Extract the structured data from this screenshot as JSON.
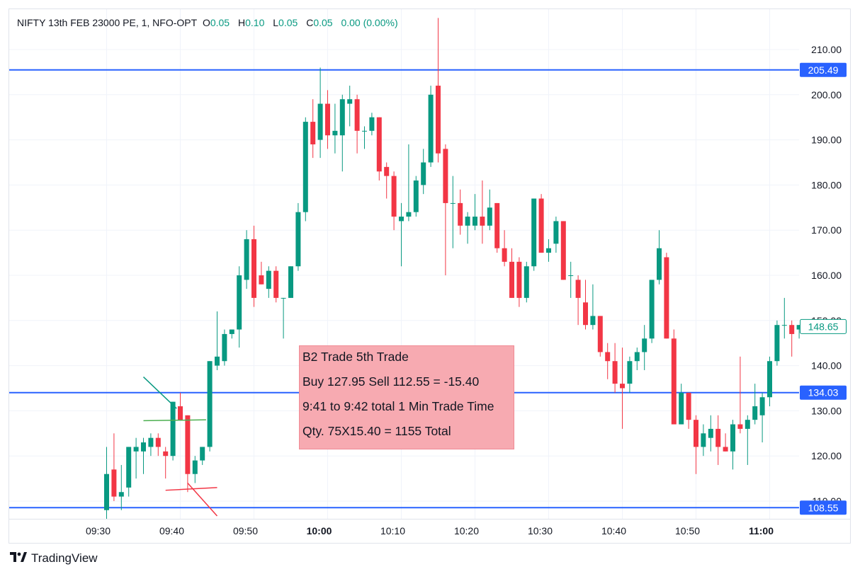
{
  "header": {
    "symbol": "NIFTY 13th FEB 23000 PE, 1, NFO-OPT",
    "o_label": "O",
    "o_value": "0.05",
    "h_label": "H",
    "h_value": "0.10",
    "l_label": "L",
    "l_value": "0.05",
    "c_label": "C",
    "c_value": "0.05",
    "change": "0.00 (0.00%)"
  },
  "brand": {
    "name": "TradingView"
  },
  "trade_note": {
    "line1": "B2 Trade 5th Trade",
    "line2": "Buy 127.95 Sell 112.55 = -15.40",
    "line3": "9:41 to 9:42 total  1 Min Trade Time",
    "line4": "Qty. 75X15.40 = 1155 Total"
  },
  "colors": {
    "up": "#089981",
    "down": "#f23645",
    "level": "#2962ff",
    "grid": "#f0f3fa",
    "note_bg": "#f7aab1"
  },
  "chart_data": {
    "type": "candlestick",
    "y_axis": {
      "range": [
        108,
        218
      ],
      "ticks": [
        "110.00",
        "120.00",
        "130.00",
        "140.00",
        "150.00",
        "160.00",
        "170.00",
        "180.00",
        "190.00",
        "200.00",
        "210.00"
      ]
    },
    "x_axis": {
      "ticks": [
        {
          "label": "09:30",
          "minute": 0
        },
        {
          "label": "09:40",
          "minute": 10
        },
        {
          "label": "09:50",
          "minute": 20
        },
        {
          "label": "10:00",
          "minute": 30,
          "bold": true
        },
        {
          "label": "10:10",
          "minute": 40
        },
        {
          "label": "10:20",
          "minute": 50
        },
        {
          "label": "10:30",
          "minute": 60
        },
        {
          "label": "10:40",
          "minute": 70
        },
        {
          "label": "10:50",
          "minute": 80
        },
        {
          "label": "11:00",
          "minute": 90,
          "bold": true
        }
      ]
    },
    "levels": [
      {
        "value": 205.49,
        "label": "205.49"
      },
      {
        "value": 134.03,
        "label": "134.03"
      },
      {
        "value": 108.55,
        "label": "108.55"
      }
    ],
    "last_price": {
      "value": 148.65,
      "label": "148.65"
    },
    "candles": [
      {
        "t": 0,
        "o": 108,
        "h": 122,
        "l": 106,
        "c": 116
      },
      {
        "t": 1,
        "o": 117,
        "h": 125,
        "l": 110,
        "c": 111
      },
      {
        "t": 2,
        "o": 111,
        "h": 118,
        "l": 108,
        "c": 112
      },
      {
        "t": 3,
        "o": 113,
        "h": 122,
        "l": 111,
        "c": 122
      },
      {
        "t": 4,
        "o": 121,
        "h": 124,
        "l": 115,
        "c": 122
      },
      {
        "t": 5,
        "o": 121,
        "h": 124,
        "l": 116,
        "c": 123
      },
      {
        "t": 6,
        "o": 122,
        "h": 125,
        "l": 120,
        "c": 124
      },
      {
        "t": 7,
        "o": 124,
        "h": 125,
        "l": 120,
        "c": 122
      },
      {
        "t": 8,
        "o": 121,
        "h": 122,
        "l": 115,
        "c": 120
      },
      {
        "t": 9,
        "o": 120,
        "h": 132,
        "l": 119,
        "c": 132
      },
      {
        "t": 10,
        "o": 131,
        "h": 134,
        "l": 128,
        "c": 128
      },
      {
        "t": 11,
        "o": 129,
        "h": 129,
        "l": 112,
        "c": 116
      },
      {
        "t": 12,
        "o": 116,
        "h": 120,
        "l": 114,
        "c": 119
      },
      {
        "t": 13,
        "o": 119,
        "h": 122,
        "l": 118,
        "c": 122
      },
      {
        "t": 14,
        "o": 122,
        "h": 141,
        "l": 121,
        "c": 141
      },
      {
        "t": 15,
        "o": 140,
        "h": 152,
        "l": 139,
        "c": 142
      },
      {
        "t": 16,
        "o": 141,
        "h": 148,
        "l": 140,
        "c": 147
      },
      {
        "t": 17,
        "o": 147,
        "h": 148,
        "l": 146,
        "c": 148
      },
      {
        "t": 18,
        "o": 148,
        "h": 162,
        "l": 144,
        "c": 160
      },
      {
        "t": 19,
        "o": 159,
        "h": 170,
        "l": 157,
        "c": 168
      },
      {
        "t": 20,
        "o": 168,
        "h": 171,
        "l": 153,
        "c": 155
      },
      {
        "t": 21,
        "o": 160,
        "h": 163,
        "l": 158,
        "c": 158
      },
      {
        "t": 22,
        "o": 157,
        "h": 162,
        "l": 155,
        "c": 161
      },
      {
        "t": 23,
        "o": 161,
        "h": 162,
        "l": 154,
        "c": 155
      },
      {
        "t": 24,
        "o": 155,
        "h": 155,
        "l": 146,
        "c": 155
      },
      {
        "t": 25,
        "o": 155,
        "h": 162,
        "l": 155,
        "c": 162
      },
      {
        "t": 26,
        "o": 162,
        "h": 176,
        "l": 161,
        "c": 174
      },
      {
        "t": 27,
        "o": 174,
        "h": 195,
        "l": 172,
        "c": 194
      },
      {
        "t": 28,
        "o": 194,
        "h": 199,
        "l": 186,
        "c": 189
      },
      {
        "t": 29,
        "o": 190,
        "h": 206,
        "l": 186,
        "c": 198
      },
      {
        "t": 30,
        "o": 198,
        "h": 201,
        "l": 188,
        "c": 191
      },
      {
        "t": 31,
        "o": 191,
        "h": 198,
        "l": 187,
        "c": 192
      },
      {
        "t": 32,
        "o": 191,
        "h": 200,
        "l": 183,
        "c": 199
      },
      {
        "t": 33,
        "o": 198,
        "h": 202,
        "l": 193,
        "c": 199
      },
      {
        "t": 34,
        "o": 199,
        "h": 200,
        "l": 187,
        "c": 192
      },
      {
        "t": 35,
        "o": 192,
        "h": 193,
        "l": 188,
        "c": 192
      },
      {
        "t": 36,
        "o": 192,
        "h": 196,
        "l": 191,
        "c": 195
      },
      {
        "t": 37,
        "o": 195,
        "h": 195,
        "l": 181,
        "c": 183
      },
      {
        "t": 38,
        "o": 184,
        "h": 185,
        "l": 177,
        "c": 182
      },
      {
        "t": 39,
        "o": 182,
        "h": 183,
        "l": 170,
        "c": 173
      },
      {
        "t": 40,
        "o": 172,
        "h": 176,
        "l": 162,
        "c": 173
      },
      {
        "t": 41,
        "o": 173,
        "h": 189,
        "l": 172,
        "c": 174
      },
      {
        "t": 42,
        "o": 174,
        "h": 182,
        "l": 173,
        "c": 181
      },
      {
        "t": 43,
        "o": 180,
        "h": 188,
        "l": 178,
        "c": 185
      },
      {
        "t": 44,
        "o": 185,
        "h": 202,
        "l": 184,
        "c": 200
      },
      {
        "t": 45,
        "o": 202,
        "h": 217,
        "l": 185,
        "c": 187
      },
      {
        "t": 46,
        "o": 188,
        "h": 189,
        "l": 160,
        "c": 176
      },
      {
        "t": 47,
        "o": 176,
        "h": 182,
        "l": 166,
        "c": 176
      },
      {
        "t": 48,
        "o": 176,
        "h": 179,
        "l": 169,
        "c": 171
      },
      {
        "t": 49,
        "o": 171,
        "h": 174,
        "l": 167,
        "c": 173
      },
      {
        "t": 50,
        "o": 171,
        "h": 178,
        "l": 170,
        "c": 173
      },
      {
        "t": 51,
        "o": 173,
        "h": 181,
        "l": 167,
        "c": 171
      },
      {
        "t": 52,
        "o": 171,
        "h": 179,
        "l": 170,
        "c": 175
      },
      {
        "t": 53,
        "o": 176,
        "h": 176,
        "l": 165,
        "c": 166
      },
      {
        "t": 54,
        "o": 166,
        "h": 170,
        "l": 162,
        "c": 163
      },
      {
        "t": 55,
        "o": 163,
        "h": 166,
        "l": 155,
        "c": 155
      },
      {
        "t": 56,
        "o": 163,
        "h": 164,
        "l": 153,
        "c": 155
      },
      {
        "t": 57,
        "o": 155,
        "h": 163,
        "l": 154,
        "c": 162
      },
      {
        "t": 58,
        "o": 162,
        "h": 177,
        "l": 161,
        "c": 177
      },
      {
        "t": 59,
        "o": 177,
        "h": 178,
        "l": 165,
        "c": 165
      },
      {
        "t": 60,
        "o": 165,
        "h": 168,
        "l": 163,
        "c": 166
      },
      {
        "t": 61,
        "o": 167,
        "h": 173,
        "l": 165,
        "c": 172
      },
      {
        "t": 62,
        "o": 172,
        "h": 172,
        "l": 159,
        "c": 159
      },
      {
        "t": 63,
        "o": 160,
        "h": 163,
        "l": 155,
        "c": 160
      },
      {
        "t": 64,
        "o": 159,
        "h": 160,
        "l": 149,
        "c": 155
      },
      {
        "t": 65,
        "o": 154,
        "h": 159,
        "l": 148,
        "c": 149
      },
      {
        "t": 66,
        "o": 149,
        "h": 158,
        "l": 148,
        "c": 151
      },
      {
        "t": 67,
        "o": 151,
        "h": 151,
        "l": 142,
        "c": 143
      },
      {
        "t": 68,
        "o": 143,
        "h": 145,
        "l": 137,
        "c": 141
      },
      {
        "t": 69,
        "o": 141,
        "h": 145,
        "l": 134,
        "c": 136
      },
      {
        "t": 70,
        "o": 136,
        "h": 144,
        "l": 126,
        "c": 135
      },
      {
        "t": 71,
        "o": 136,
        "h": 142,
        "l": 134,
        "c": 141
      },
      {
        "t": 72,
        "o": 141,
        "h": 144,
        "l": 139,
        "c": 143
      },
      {
        "t": 73,
        "o": 143,
        "h": 149,
        "l": 139,
        "c": 146
      },
      {
        "t": 74,
        "o": 146,
        "h": 158,
        "l": 145,
        "c": 159
      },
      {
        "t": 75,
        "o": 159,
        "h": 170,
        "l": 158,
        "c": 166
      },
      {
        "t": 76,
        "o": 164,
        "h": 165,
        "l": 146,
        "c": 146
      },
      {
        "t": 77,
        "o": 146,
        "h": 148,
        "l": 127,
        "c": 127
      },
      {
        "t": 78,
        "o": 127,
        "h": 136,
        "l": 127,
        "c": 134
      },
      {
        "t": 79,
        "o": 134,
        "h": 134,
        "l": 126,
        "c": 128
      },
      {
        "t": 80,
        "o": 128,
        "h": 129,
        "l": 116,
        "c": 122
      },
      {
        "t": 81,
        "o": 122,
        "h": 127,
        "l": 120,
        "c": 125
      },
      {
        "t": 82,
        "o": 124,
        "h": 129,
        "l": 121,
        "c": 126
      },
      {
        "t": 83,
        "o": 126,
        "h": 129,
        "l": 118,
        "c": 122
      },
      {
        "t": 84,
        "o": 122,
        "h": 125,
        "l": 121,
        "c": 121
      },
      {
        "t": 85,
        "o": 121,
        "h": 128,
        "l": 117,
        "c": 127
      },
      {
        "t": 86,
        "o": 127,
        "h": 142,
        "l": 125,
        "c": 126
      },
      {
        "t": 87,
        "o": 126,
        "h": 129,
        "l": 118,
        "c": 128
      },
      {
        "t": 88,
        "o": 128,
        "h": 136,
        "l": 127,
        "c": 131
      },
      {
        "t": 89,
        "o": 129,
        "h": 134,
        "l": 123,
        "c": 133
      },
      {
        "t": 90,
        "o": 133,
        "h": 142,
        "l": 131,
        "c": 141
      },
      {
        "t": 91,
        "o": 141,
        "h": 150,
        "l": 140,
        "c": 149
      },
      {
        "t": 92,
        "o": 149,
        "h": 155,
        "l": 146,
        "c": 149
      },
      {
        "t": 93,
        "o": 149,
        "h": 150,
        "l": 142,
        "c": 147
      },
      {
        "t": 94,
        "o": 148,
        "h": 149,
        "l": 146,
        "c": 149
      }
    ],
    "annotations": [
      {
        "type": "line",
        "color": "#089981",
        "points": [
          [
            5,
            137.5
          ],
          [
            9.5,
            130.5
          ]
        ]
      },
      {
        "type": "line",
        "color": "#4caf50",
        "points": [
          [
            5,
            127.8
          ],
          [
            13.5,
            128
          ]
        ]
      },
      {
        "type": "line",
        "color": "#f23645",
        "points": [
          [
            8,
            112.4
          ],
          [
            15,
            113
          ]
        ]
      },
      {
        "type": "line",
        "color": "#f23645",
        "points": [
          [
            11,
            114
          ],
          [
            15,
            106.7
          ]
        ]
      }
    ]
  }
}
